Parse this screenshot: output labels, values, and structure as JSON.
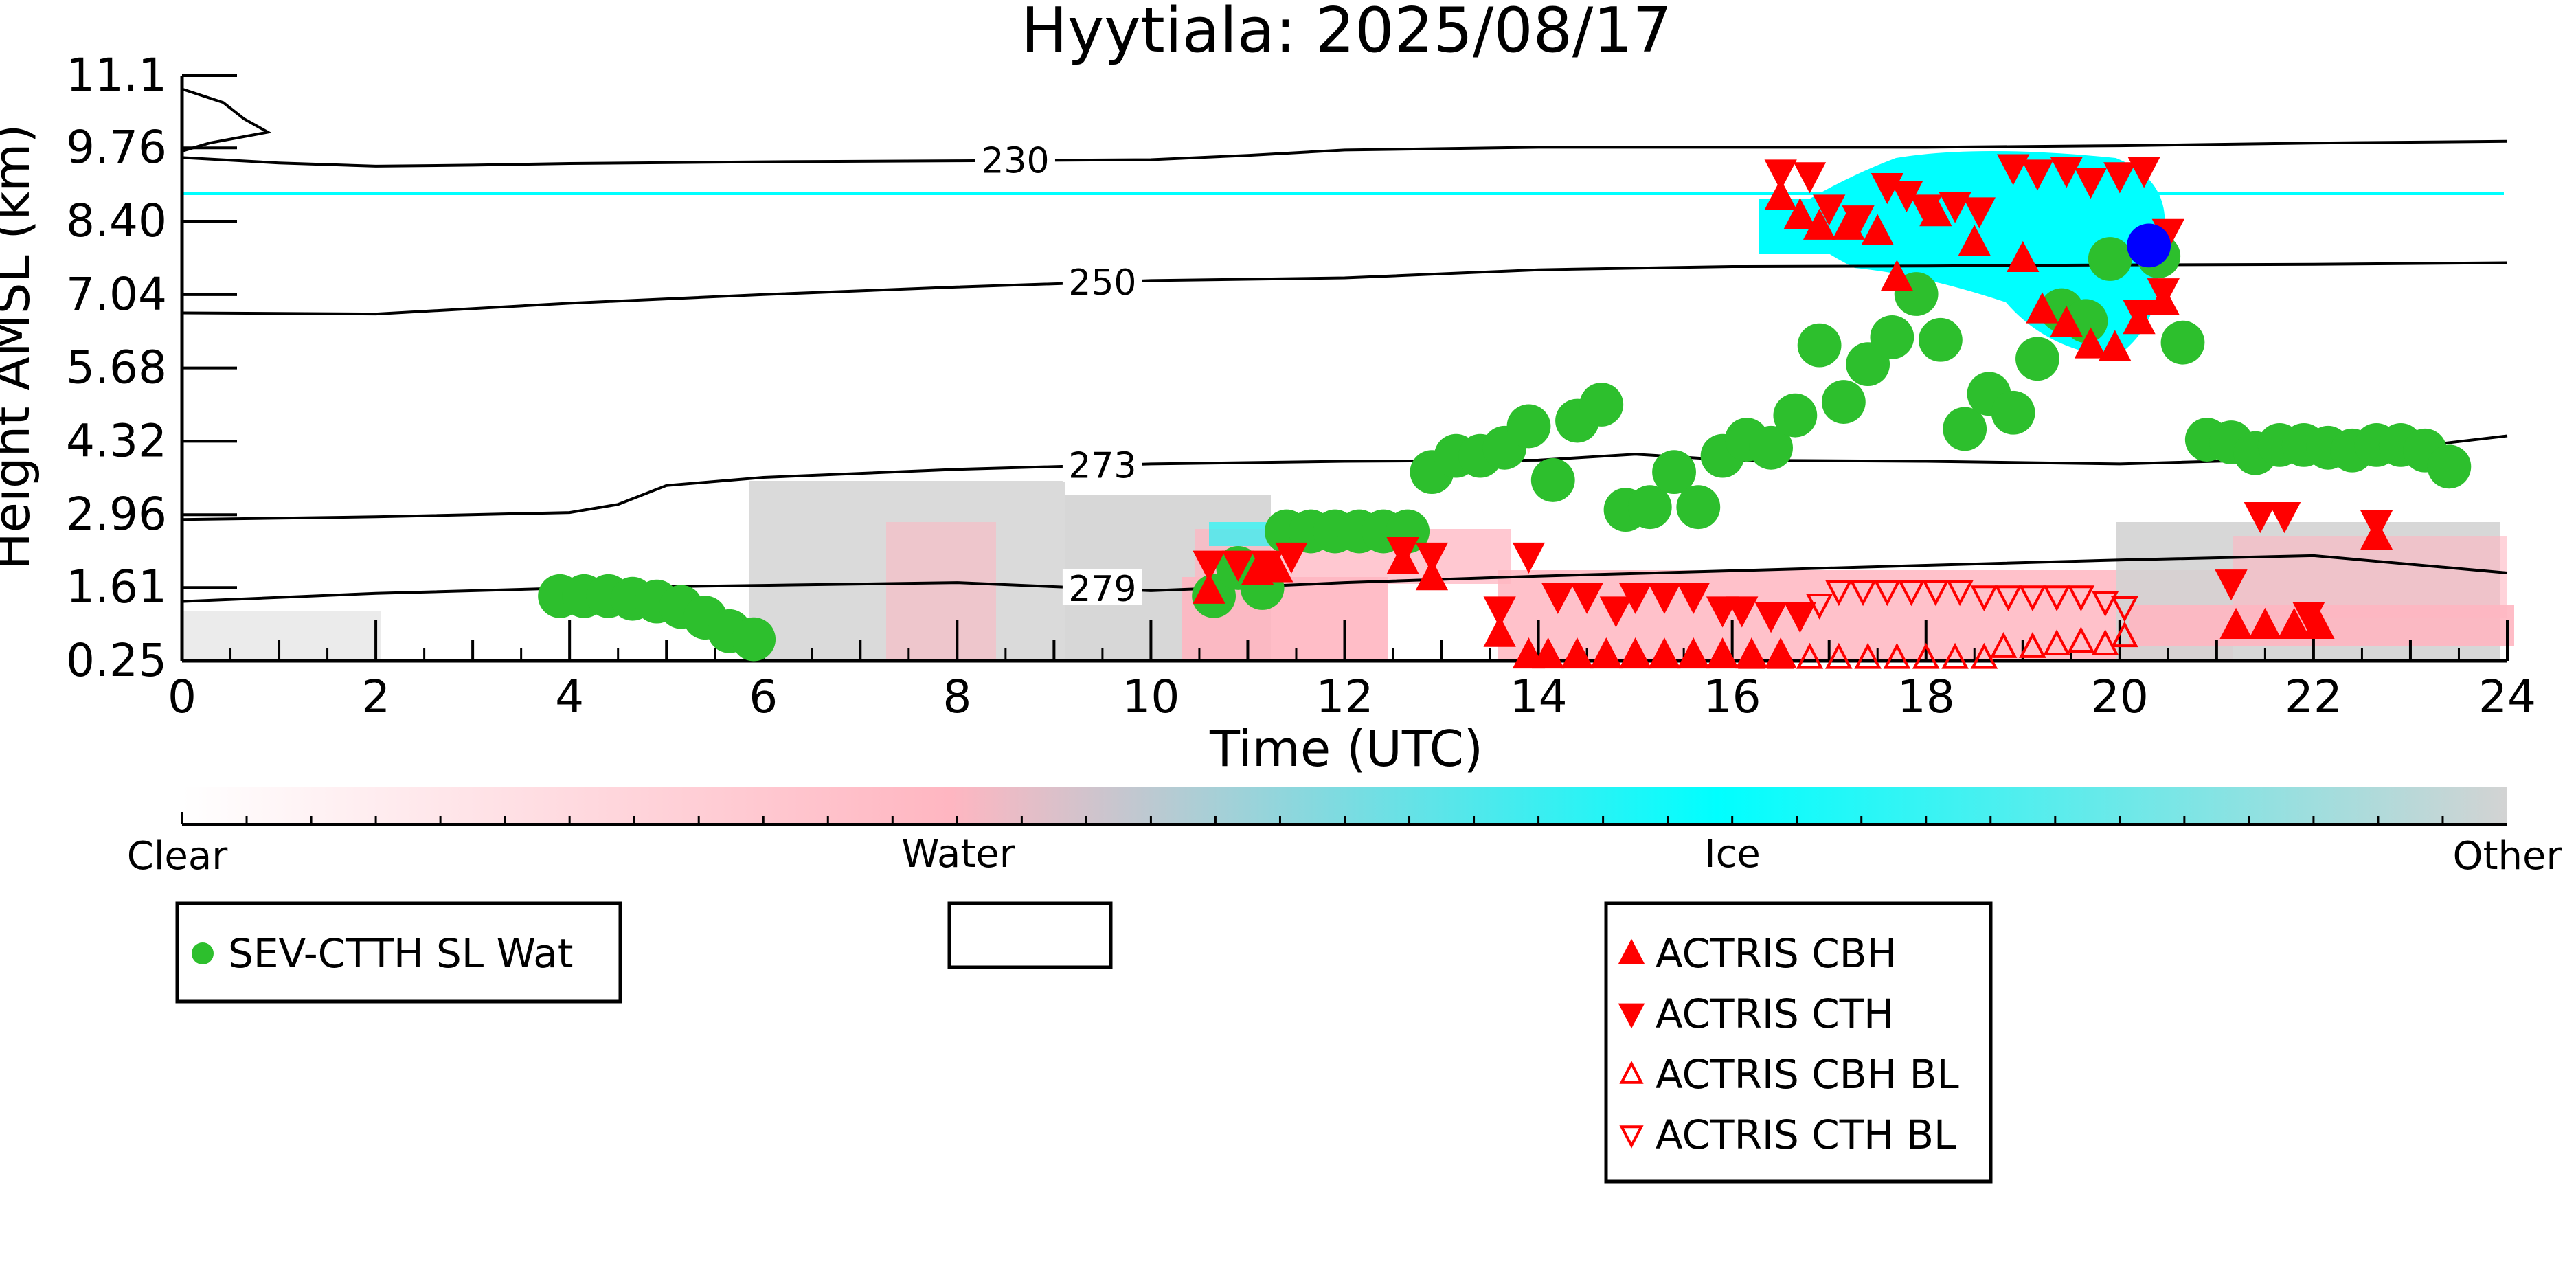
{
  "chart_data": {
    "type": "scatter",
    "title": "Hyytiala: 2025/08/17",
    "xlabel": "Time (UTC)",
    "ylabel": "Height AMSL (km)",
    "xlim": [
      0,
      24
    ],
    "ylim": [
      0.25,
      11.1
    ],
    "x_ticks": [
      "0",
      "2",
      "4",
      "6",
      "8",
      "10",
      "12",
      "14",
      "16",
      "18",
      "20",
      "22",
      "24"
    ],
    "y_ticks": [
      "0.25",
      "1.61",
      "2.96",
      "4.32",
      "5.68",
      "7.04",
      "8.40",
      "9.76",
      "11.1"
    ],
    "grid": false,
    "colorbar": {
      "labels": [
        "Clear",
        "Water",
        "Ice",
        "Other"
      ],
      "colors": [
        "#ffffff",
        "#ffb6c1",
        "#00ffff",
        "#d3d3d3"
      ]
    },
    "temperature_contours": [
      {
        "label": "230",
        "label_x": 8.6,
        "points": [
          [
            0,
            9.58
          ],
          [
            1,
            9.48
          ],
          [
            2,
            9.42
          ],
          [
            3,
            9.44
          ],
          [
            4,
            9.47
          ],
          [
            6,
            9.5
          ],
          [
            8,
            9.52
          ],
          [
            10,
            9.54
          ],
          [
            11,
            9.62
          ],
          [
            12,
            9.72
          ],
          [
            14,
            9.77
          ],
          [
            16,
            9.77
          ],
          [
            18,
            9.77
          ],
          [
            20,
            9.8
          ],
          [
            22,
            9.85
          ],
          [
            24,
            9.88
          ]
        ]
      },
      {
        "label": "250",
        "label_x": 9.5,
        "points": [
          [
            0,
            6.7
          ],
          [
            2,
            6.68
          ],
          [
            4,
            6.88
          ],
          [
            6,
            7.04
          ],
          [
            8,
            7.18
          ],
          [
            10,
            7.3
          ],
          [
            12,
            7.35
          ],
          [
            14,
            7.5
          ],
          [
            16,
            7.56
          ],
          [
            18,
            7.57
          ],
          [
            20,
            7.59
          ],
          [
            22,
            7.6
          ],
          [
            24,
            7.63
          ]
        ]
      },
      {
        "label": "273",
        "label_x": 9.5,
        "points": [
          [
            0,
            2.87
          ],
          [
            2,
            2.92
          ],
          [
            4,
            3.0
          ],
          [
            4.5,
            3.15
          ],
          [
            5,
            3.5
          ],
          [
            6,
            3.65
          ],
          [
            8,
            3.8
          ],
          [
            10,
            3.9
          ],
          [
            12,
            3.95
          ],
          [
            14,
            3.97
          ],
          [
            15,
            4.08
          ],
          [
            16,
            3.97
          ],
          [
            18,
            3.95
          ],
          [
            20,
            3.9
          ],
          [
            22,
            4.0
          ],
          [
            24,
            4.42
          ]
        ]
      },
      {
        "label": "279",
        "label_x": 9.5,
        "points": [
          [
            0,
            1.35
          ],
          [
            2,
            1.5
          ],
          [
            4,
            1.6
          ],
          [
            6,
            1.65
          ],
          [
            8,
            1.7
          ],
          [
            10,
            1.55
          ],
          [
            11,
            1.62
          ],
          [
            12,
            1.7
          ],
          [
            14,
            1.82
          ],
          [
            16,
            1.92
          ],
          [
            18,
            2.02
          ],
          [
            20,
            2.12
          ],
          [
            22,
            2.2
          ],
          [
            24,
            1.88
          ]
        ]
      }
    ],
    "series": [
      {
        "name": "SEV-CTTH SL Wat",
        "color": "#2dbf2d",
        "marker": "circle",
        "points": [
          [
            3.9,
            1.45
          ],
          [
            4.15,
            1.45
          ],
          [
            4.4,
            1.45
          ],
          [
            4.65,
            1.4
          ],
          [
            4.9,
            1.35
          ],
          [
            5.15,
            1.25
          ],
          [
            5.4,
            1.05
          ],
          [
            5.65,
            0.8
          ],
          [
            5.9,
            0.65
          ],
          [
            10.65,
            1.45
          ],
          [
            10.9,
            1.97
          ],
          [
            11.15,
            1.6
          ],
          [
            11.4,
            2.65
          ],
          [
            11.65,
            2.65
          ],
          [
            11.9,
            2.65
          ],
          [
            12.15,
            2.65
          ],
          [
            12.4,
            2.65
          ],
          [
            12.65,
            2.65
          ],
          [
            12.9,
            3.75
          ],
          [
            13.15,
            4.05
          ],
          [
            13.4,
            4.05
          ],
          [
            13.65,
            4.2
          ],
          [
            13.9,
            4.6
          ],
          [
            14.15,
            3.6
          ],
          [
            14.4,
            4.7
          ],
          [
            14.65,
            5.0
          ],
          [
            14.9,
            3.05
          ],
          [
            15.15,
            3.1
          ],
          [
            15.4,
            3.75
          ],
          [
            15.65,
            3.1
          ],
          [
            15.9,
            4.05
          ],
          [
            16.15,
            4.35
          ],
          [
            16.4,
            4.2
          ],
          [
            16.65,
            4.8
          ],
          [
            16.9,
            6.1
          ],
          [
            17.15,
            5.05
          ],
          [
            17.4,
            5.75
          ],
          [
            17.65,
            6.25
          ],
          [
            17.9,
            7.05
          ],
          [
            18.15,
            6.2
          ],
          [
            18.4,
            4.55
          ],
          [
            18.65,
            5.2
          ],
          [
            18.9,
            4.85
          ],
          [
            19.15,
            5.85
          ],
          [
            19.4,
            6.75
          ],
          [
            19.65,
            6.55
          ],
          [
            19.9,
            7.7
          ],
          [
            20.4,
            7.75
          ],
          [
            20.65,
            6.15
          ],
          [
            20.9,
            4.35
          ],
          [
            21.15,
            4.3
          ],
          [
            21.4,
            4.1
          ],
          [
            21.65,
            4.25
          ],
          [
            21.9,
            4.25
          ],
          [
            22.15,
            4.2
          ],
          [
            22.4,
            4.15
          ],
          [
            22.65,
            4.25
          ],
          [
            22.9,
            4.25
          ],
          [
            23.15,
            4.15
          ],
          [
            23.4,
            3.85
          ]
        ]
      },
      {
        "name": "ACTRIS CBH",
        "color": "#ff0000",
        "marker": "triangle-up-filled",
        "points": [
          [
            10.6,
            1.55
          ],
          [
            11.1,
            1.9
          ],
          [
            11.3,
            1.95
          ],
          [
            12.6,
            2.1
          ],
          [
            12.9,
            1.8
          ],
          [
            13.6,
            0.75
          ],
          [
            13.9,
            0.35
          ],
          [
            14.1,
            0.35
          ],
          [
            14.4,
            0.35
          ],
          [
            14.7,
            0.35
          ],
          [
            15.0,
            0.35
          ],
          [
            15.3,
            0.35
          ],
          [
            15.6,
            0.35
          ],
          [
            15.9,
            0.35
          ],
          [
            16.2,
            0.35
          ],
          [
            16.5,
            0.35
          ],
          [
            16.5,
            8.85
          ],
          [
            16.7,
            8.5
          ],
          [
            16.9,
            8.3
          ],
          [
            17.2,
            8.3
          ],
          [
            17.5,
            8.2
          ],
          [
            17.7,
            7.35
          ],
          [
            18.1,
            8.55
          ],
          [
            18.5,
            8.0
          ],
          [
            19.0,
            7.7
          ],
          [
            19.2,
            6.75
          ],
          [
            19.45,
            6.5
          ],
          [
            19.7,
            6.1
          ],
          [
            19.95,
            6.05
          ],
          [
            20.2,
            6.55
          ],
          [
            20.45,
            6.9
          ],
          [
            21.2,
            0.9
          ],
          [
            21.5,
            0.9
          ],
          [
            21.8,
            0.9
          ],
          [
            22.05,
            0.9
          ],
          [
            22.65,
            2.55
          ]
        ]
      },
      {
        "name": "ACTRIS CTH",
        "color": "#ff0000",
        "marker": "triangle-down-filled",
        "points": [
          [
            10.6,
            2.05
          ],
          [
            10.9,
            2.05
          ],
          [
            11.2,
            2.05
          ],
          [
            11.45,
            2.2
          ],
          [
            12.6,
            2.3
          ],
          [
            12.9,
            2.2
          ],
          [
            13.6,
            1.2
          ],
          [
            13.9,
            2.2
          ],
          [
            14.2,
            1.45
          ],
          [
            14.5,
            1.45
          ],
          [
            14.8,
            1.2
          ],
          [
            15.0,
            1.45
          ],
          [
            15.3,
            1.45
          ],
          [
            15.6,
            1.45
          ],
          [
            15.9,
            1.2
          ],
          [
            16.1,
            1.2
          ],
          [
            16.4,
            1.1
          ],
          [
            16.7,
            1.1
          ],
          [
            16.5,
            9.3
          ],
          [
            16.8,
            9.25
          ],
          [
            17.0,
            8.65
          ],
          [
            17.3,
            8.45
          ],
          [
            17.6,
            9.05
          ],
          [
            17.8,
            8.9
          ],
          [
            18.0,
            8.65
          ],
          [
            18.3,
            8.7
          ],
          [
            18.55,
            8.6
          ],
          [
            18.9,
            9.4
          ],
          [
            19.15,
            9.3
          ],
          [
            19.45,
            9.35
          ],
          [
            19.7,
            9.15
          ],
          [
            20.0,
            9.25
          ],
          [
            20.25,
            9.35
          ],
          [
            20.5,
            8.2
          ],
          [
            20.2,
            6.7
          ],
          [
            20.45,
            7.1
          ],
          [
            21.15,
            1.7
          ],
          [
            21.45,
            2.95
          ],
          [
            21.7,
            2.95
          ],
          [
            21.95,
            1.1
          ],
          [
            22.65,
            2.8
          ]
        ]
      },
      {
        "name": "ACTRIS CBH BL",
        "color": "#ff0000",
        "marker": "triangle-up-open",
        "points": [
          [
            16.2,
            0.3
          ],
          [
            16.5,
            0.3
          ],
          [
            16.8,
            0.3
          ],
          [
            17.1,
            0.3
          ],
          [
            17.4,
            0.3
          ],
          [
            17.7,
            0.3
          ],
          [
            18.0,
            0.3
          ],
          [
            18.3,
            0.3
          ],
          [
            18.6,
            0.3
          ],
          [
            18.8,
            0.5
          ],
          [
            19.1,
            0.5
          ],
          [
            19.35,
            0.55
          ],
          [
            19.6,
            0.6
          ],
          [
            19.85,
            0.55
          ],
          [
            20.05,
            0.7
          ]
        ]
      },
      {
        "name": "ACTRIS CTH BL",
        "color": "#ff0000",
        "marker": "triangle-down-open",
        "points": [
          [
            16.9,
            1.3
          ],
          [
            17.1,
            1.55
          ],
          [
            17.35,
            1.55
          ],
          [
            17.6,
            1.55
          ],
          [
            17.85,
            1.55
          ],
          [
            18.1,
            1.55
          ],
          [
            18.35,
            1.55
          ],
          [
            18.6,
            1.45
          ],
          [
            18.85,
            1.45
          ],
          [
            19.1,
            1.45
          ],
          [
            19.35,
            1.45
          ],
          [
            19.6,
            1.45
          ],
          [
            19.85,
            1.35
          ],
          [
            20.05,
            1.25
          ]
        ]
      },
      {
        "name": "",
        "color": "#0000ff",
        "marker": "circle",
        "points": [
          [
            20.3,
            7.95
          ]
        ]
      }
    ],
    "legends": {
      "left": [
        "SEV-CTTH SL Wat"
      ],
      "middle": [],
      "right": [
        "ACTRIS CBH",
        "ACTRIS CTH",
        "ACTRIS CBH BL",
        "ACTRIS CTH BL"
      ]
    }
  }
}
